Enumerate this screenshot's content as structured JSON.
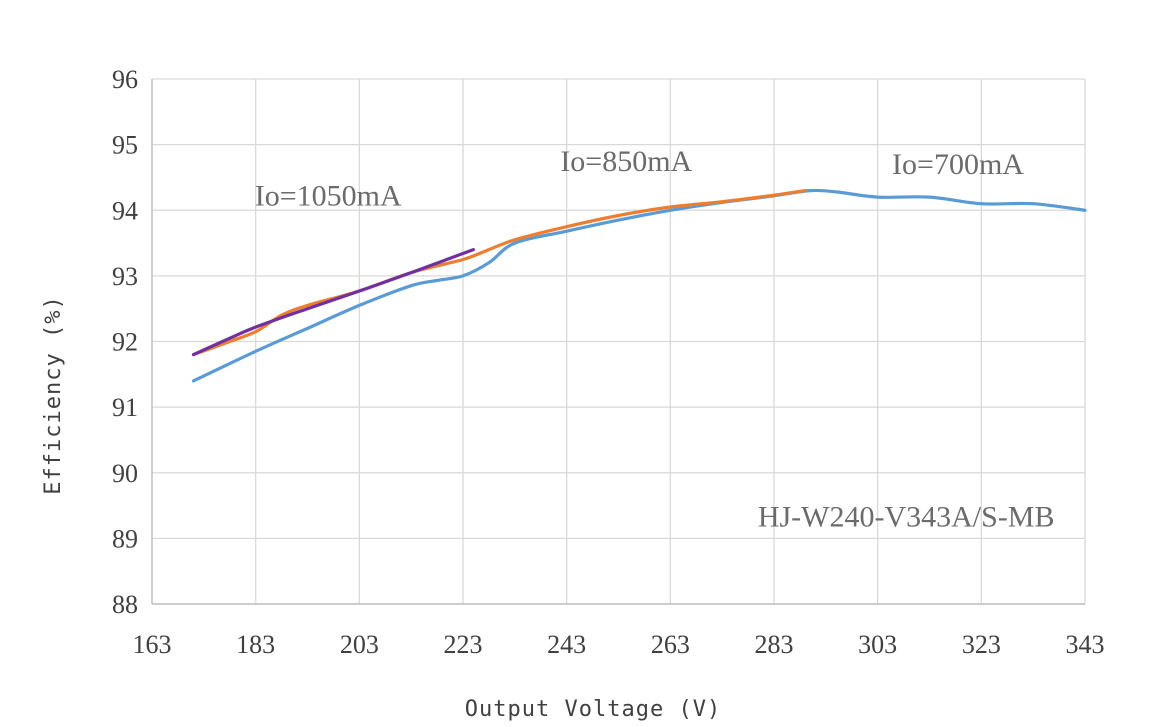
{
  "chart_data": {
    "type": "line",
    "title": "",
    "xlabel": "Output Voltage (V)",
    "ylabel": "Efficiency (%)",
    "xlim": [
      163,
      343
    ],
    "ylim": [
      88,
      96
    ],
    "xticks": [
      163,
      183,
      203,
      223,
      243,
      263,
      283,
      303,
      323,
      343
    ],
    "yticks": [
      88,
      89,
      90,
      91,
      92,
      93,
      94,
      95,
      96
    ],
    "grid": true,
    "legend": "none",
    "series": [
      {
        "name": "Io=700mA",
        "color": "#5b9bd5",
        "points": [
          [
            171,
            91.4
          ],
          [
            183,
            91.85
          ],
          [
            193,
            92.2
          ],
          [
            203,
            92.55
          ],
          [
            213,
            92.85
          ],
          [
            218,
            92.93
          ],
          [
            223,
            93.0
          ],
          [
            228,
            93.2
          ],
          [
            233,
            93.5
          ],
          [
            243,
            93.68
          ],
          [
            253,
            93.85
          ],
          [
            263,
            94.0
          ],
          [
            273,
            94.12
          ],
          [
            283,
            94.22
          ],
          [
            290,
            94.3
          ],
          [
            295,
            94.28
          ],
          [
            303,
            94.2
          ],
          [
            313,
            94.2
          ],
          [
            323,
            94.1
          ],
          [
            333,
            94.1
          ],
          [
            343,
            94.0
          ]
        ]
      },
      {
        "name": "Io=850mA",
        "color": "#ed7d31",
        "points": [
          [
            171,
            91.8
          ],
          [
            178,
            92.0
          ],
          [
            183,
            92.15
          ],
          [
            188,
            92.4
          ],
          [
            193,
            92.55
          ],
          [
            203,
            92.77
          ],
          [
            213,
            93.05
          ],
          [
            223,
            93.25
          ],
          [
            228,
            93.4
          ],
          [
            233,
            93.55
          ],
          [
            243,
            93.75
          ],
          [
            253,
            93.92
          ],
          [
            263,
            94.05
          ],
          [
            273,
            94.13
          ],
          [
            283,
            94.23
          ],
          [
            289,
            94.3
          ]
        ]
      },
      {
        "name": "Io=1050mA",
        "color": "#7030a0",
        "points": [
          [
            171,
            91.8
          ],
          [
            178,
            92.05
          ],
          [
            183,
            92.22
          ],
          [
            193,
            92.5
          ],
          [
            203,
            92.77
          ],
          [
            213,
            93.05
          ],
          [
            225,
            93.4
          ]
        ]
      }
    ],
    "annotations": [
      {
        "text": "Io=1050mA",
        "x": 197,
        "y": 94.07
      },
      {
        "text": "Io=850mA",
        "x": 254.5,
        "y": 94.6
      },
      {
        "text": "Io=700mA",
        "x": 318.5,
        "y": 94.55
      },
      {
        "text": "HJ-W240-V343A/S-MB",
        "x": 308.5,
        "y": 89.18
      }
    ]
  }
}
